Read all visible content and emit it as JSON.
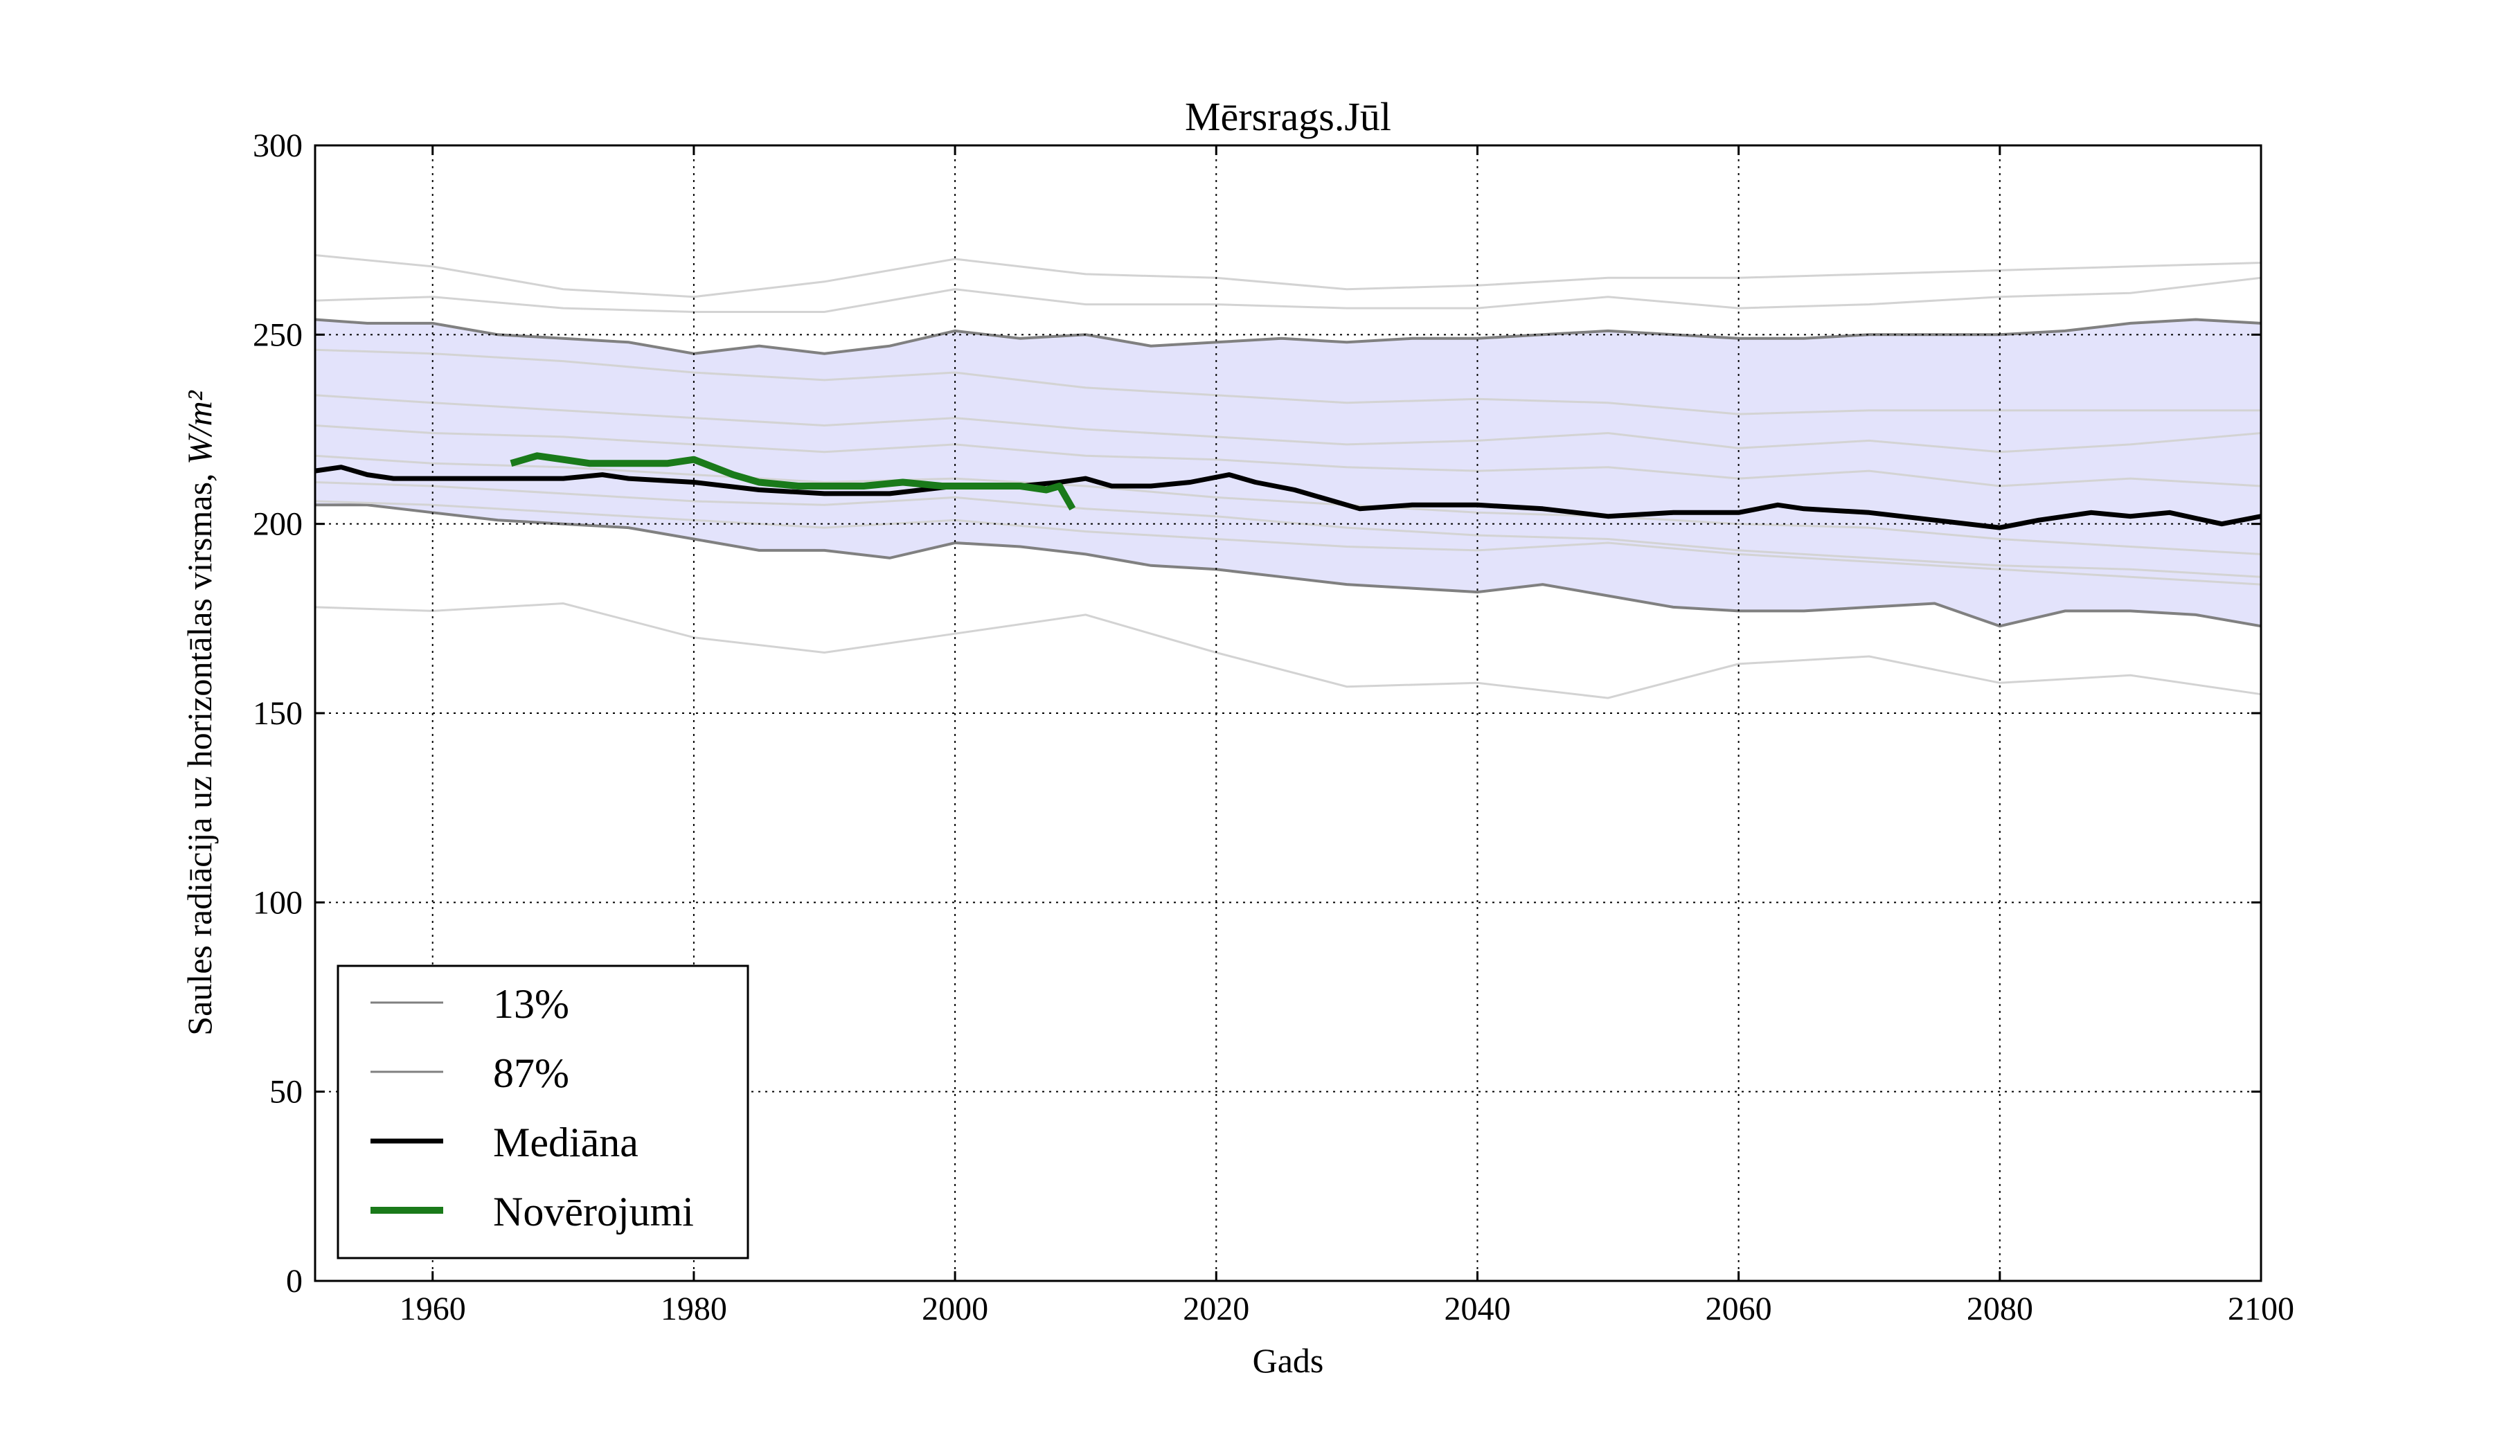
{
  "chart_data": {
    "type": "line",
    "title": "Mērsrags.Jūl",
    "xlabel": "Gads",
    "ylabel": "Saules radiācija uz horizontālas virsmas, ",
    "ylabel_unit": "W/m²",
    "xlim": [
      1951,
      2100
    ],
    "ylim": [
      0,
      300
    ],
    "x_ticks": [
      1960,
      1980,
      2000,
      2020,
      2040,
      2060,
      2080,
      2100
    ],
    "y_ticks": [
      0,
      50,
      100,
      150,
      200,
      250,
      300
    ],
    "grid": true,
    "legend_position": "bottom-left",
    "legend": [
      {
        "label": "13%",
        "style": "thin-gray"
      },
      {
        "label": "87%",
        "style": "thin-gray"
      },
      {
        "label": "Mediāna",
        "style": "thick-black"
      },
      {
        "label": "Novērojumi",
        "style": "thick-green"
      }
    ],
    "colors": {
      "band_fill": "#e3e3fb",
      "percentile": "#808080",
      "ensemble": "#d3d3d3",
      "median": "#000000",
      "observations": "#1a7a1a"
    },
    "band": {
      "lower_name": "13%",
      "upper_name": "87%",
      "x": [
        1951,
        1955,
        1960,
        1965,
        1970,
        1975,
        1980,
        1985,
        1990,
        1995,
        2000,
        2005,
        2010,
        2015,
        2020,
        2025,
        2030,
        2035,
        2040,
        2045,
        2050,
        2055,
        2060,
        2065,
        2070,
        2075,
        2080,
        2085,
        2090,
        2095,
        2100
      ],
      "upper": [
        254,
        253,
        253,
        250,
        249,
        248,
        245,
        247,
        245,
        247,
        251,
        249,
        250,
        247,
        248,
        249,
        248,
        249,
        249,
        250,
        251,
        250,
        249,
        249,
        250,
        250,
        250,
        251,
        253,
        254,
        253
      ],
      "lower": [
        205,
        205,
        203,
        201,
        200,
        199,
        196,
        193,
        193,
        191,
        195,
        194,
        192,
        189,
        188,
        186,
        184,
        183,
        182,
        184,
        181,
        178,
        177,
        177,
        178,
        179,
        173,
        177,
        177,
        176,
        173
      ]
    },
    "ensemble": [
      {
        "x": [
          1951,
          1960,
          1970,
          1980,
          1990,
          2000,
          2010,
          2020,
          2030,
          2040,
          2050,
          2060,
          2070,
          2080,
          2090,
          2100
        ],
        "values": [
          271,
          268,
          262,
          260,
          264,
          270,
          266,
          265,
          262,
          263,
          265,
          265,
          266,
          267,
          268,
          269
        ]
      },
      {
        "x": [
          1951,
          1960,
          1970,
          1980,
          1990,
          2000,
          2010,
          2020,
          2030,
          2040,
          2050,
          2060,
          2070,
          2080,
          2090,
          2100
        ],
        "values": [
          259,
          260,
          257,
          256,
          256,
          262,
          258,
          258,
          257,
          257,
          260,
          257,
          258,
          260,
          261,
          265
        ]
      },
      {
        "x": [
          1951,
          1960,
          1970,
          1980,
          1990,
          2000,
          2010,
          2020,
          2030,
          2040,
          2050,
          2060,
          2070,
          2080,
          2090,
          2100
        ],
        "values": [
          246,
          245,
          243,
          240,
          238,
          240,
          236,
          234,
          232,
          233,
          232,
          229,
          230,
          230,
          230,
          230
        ]
      },
      {
        "x": [
          1951,
          1960,
          1970,
          1980,
          1990,
          2000,
          2010,
          2020,
          2030,
          2040,
          2050,
          2060,
          2070,
          2080,
          2090,
          2100
        ],
        "values": [
          234,
          232,
          230,
          228,
          226,
          228,
          225,
          223,
          221,
          222,
          224,
          220,
          222,
          219,
          221,
          224
        ]
      },
      {
        "x": [
          1951,
          1960,
          1970,
          1980,
          1990,
          2000,
          2010,
          2020,
          2030,
          2040,
          2050,
          2060,
          2070,
          2080,
          2090,
          2100
        ],
        "values": [
          226,
          224,
          223,
          221,
          219,
          221,
          218,
          217,
          215,
          214,
          215,
          212,
          214,
          210,
          212,
          210
        ]
      },
      {
        "x": [
          1951,
          1960,
          1970,
          1980,
          1990,
          2000,
          2010,
          2020,
          2030,
          2040,
          2050,
          2060,
          2070,
          2080,
          2090,
          2100
        ],
        "values": [
          218,
          216,
          215,
          213,
          211,
          212,
          210,
          207,
          205,
          203,
          202,
          200,
          199,
          196,
          194,
          192
        ]
      },
      {
        "x": [
          1951,
          1960,
          1970,
          1980,
          1990,
          2000,
          2010,
          2020,
          2030,
          2040,
          2050,
          2060,
          2070,
          2080,
          2090,
          2100
        ],
        "values": [
          211,
          210,
          208,
          206,
          205,
          207,
          204,
          202,
          199,
          197,
          196,
          193,
          191,
          189,
          188,
          186
        ]
      },
      {
        "x": [
          1951,
          1960,
          1970,
          1980,
          1990,
          2000,
          2010,
          2020,
          2030,
          2040,
          2050,
          2060,
          2070,
          2080,
          2090,
          2100
        ],
        "values": [
          178,
          177,
          179,
          170,
          166,
          171,
          176,
          166,
          157,
          158,
          154,
          163,
          165,
          158,
          160,
          155
        ]
      },
      {
        "x": [
          1951,
          1960,
          1970,
          1980,
          1990,
          2000,
          2010,
          2020,
          2030,
          2040,
          2050,
          2060,
          2070,
          2080,
          2090,
          2100
        ],
        "values": [
          206,
          205,
          203,
          201,
          199,
          201,
          198,
          196,
          194,
          193,
          195,
          192,
          190,
          188,
          186,
          184
        ]
      }
    ],
    "series": [
      {
        "name": "Mediāna",
        "x": [
          1951,
          1953,
          1955,
          1957,
          1960,
          1965,
          1970,
          1973,
          1975,
          1980,
          1985,
          1990,
          1995,
          2000,
          2005,
          2008,
          2010,
          2012,
          2015,
          2018,
          2021,
          2023,
          2026,
          2029,
          2031,
          2035,
          2040,
          2045,
          2050,
          2055,
          2060,
          2063,
          2065,
          2070,
          2075,
          2080,
          2083,
          2087,
          2090,
          2093,
          2097,
          2100
        ],
        "values": [
          214,
          215,
          213,
          212,
          212,
          212,
          212,
          213,
          212,
          211,
          209,
          208,
          208,
          210,
          210,
          211,
          212,
          210,
          210,
          211,
          213,
          211,
          209,
          206,
          204,
          205,
          205,
          204,
          202,
          203,
          203,
          205,
          204,
          203,
          201,
          199,
          201,
          203,
          202,
          203,
          200,
          202
        ]
      },
      {
        "name": "Novērojumi",
        "x": [
          1966,
          1968,
          1970,
          1972,
          1975,
          1978,
          1980,
          1983,
          1985,
          1988,
          1990,
          1993,
          1996,
          1999,
          2002,
          2005,
          2007,
          2008,
          2009
        ],
        "values": [
          216,
          218,
          217,
          216,
          216,
          216,
          217,
          213,
          211,
          210,
          210,
          210,
          211,
          210,
          210,
          210,
          209,
          210,
          204
        ]
      }
    ]
  }
}
